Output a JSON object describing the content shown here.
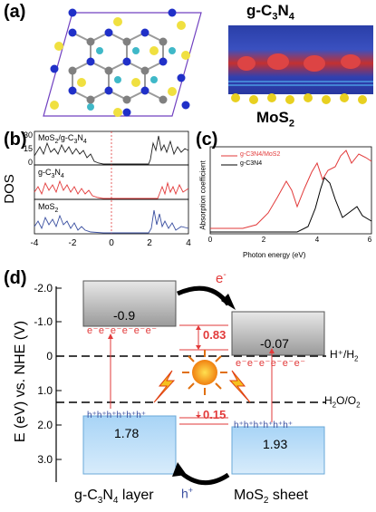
{
  "panels": {
    "a": {
      "label": "(a)",
      "top_label": "g-C",
      "top_sub": "3",
      "top_mid": "N",
      "top_sub2": "4",
      "bottom_label": "MoS",
      "bottom_sub": "2"
    },
    "b": {
      "label": "(b)",
      "ylabel": "DOS",
      "fermi_at": 0,
      "xlim": [
        -4,
        4
      ],
      "xticks": [
        "-4",
        "-2",
        "0",
        "2",
        "4"
      ],
      "yticks": [
        "30",
        "15",
        "0"
      ],
      "subplots": [
        {
          "name": "MoS2/g-C3N4",
          "label_a": "MoS",
          "label_sub": "2",
          "label_b": "/g-C",
          "label_sub2": "3",
          "label_c": "N",
          "label_sub3": "4",
          "color": "#222222"
        },
        {
          "name": "g-C3N4",
          "label_a": "g-C",
          "label_sub": "3",
          "label_b": "N",
          "label_sub2": "4",
          "color": "#e23a3a"
        },
        {
          "name": "MoS2",
          "label_a": "MoS",
          "label_sub": "2",
          "color": "#3a4fa0"
        }
      ]
    },
    "c": {
      "label": "(c)",
      "ylabel": "Absorption coefficient",
      "xlabel": "Photon energy (eV)",
      "xticks": [
        "0",
        "2",
        "4",
        "6"
      ],
      "legend": [
        {
          "text": "g-C3N4/MoS2",
          "color": "#e23a3a"
        },
        {
          "text": "g-C3N4",
          "color": "#000000"
        }
      ]
    },
    "d": {
      "label": "(d)",
      "ylabel": "E (eV) vs. NHE (V)",
      "yticks": [
        "-2.0",
        "-1.0",
        "0",
        "1.0",
        "2.0",
        "3.0"
      ],
      "ytick_values": [
        -2.0,
        -1.0,
        0,
        1.0,
        2.0,
        3.0
      ],
      "gcn_cb": "-0.9",
      "gcn_vb": "1.78",
      "mos2_cb": "-0.07",
      "mos2_vb": "1.93",
      "cb_offset": "0.83",
      "vb_offset": "0.15",
      "electrons": "e⁻e⁻e⁻e⁻e⁻e⁻",
      "holes": "h⁺h⁺h⁺h⁺h⁺h⁺",
      "e_arrow": "e",
      "h_arrow": "h",
      "h2_label": "H⁺/H",
      "h2_sub": "2",
      "o2_label": "H",
      "o2_sub": "2",
      "o2_mid": "O/O",
      "o2_sub2": "2",
      "left_label_a": "g-C",
      "left_sub": "3",
      "left_label_b": "N",
      "left_sub2": "4",
      "left_label_c": " layer",
      "right_label_a": "MoS",
      "right_sub": "2",
      "right_label_b": " sheet"
    }
  }
}
